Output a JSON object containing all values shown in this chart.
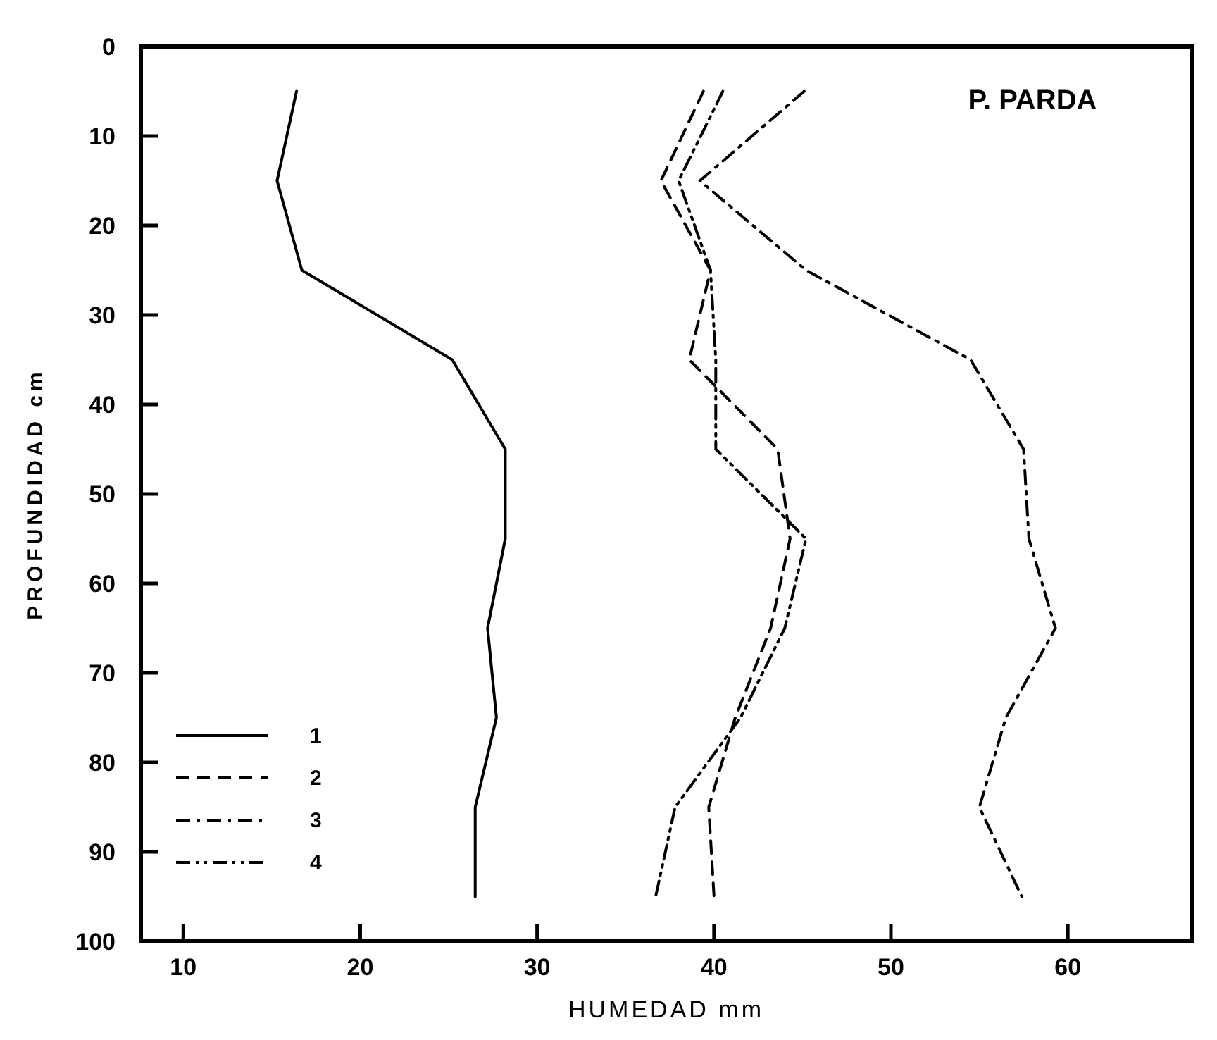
{
  "chart_data": {
    "type": "line",
    "title": "P. PARDA",
    "xlabel": "HUMEDAD mm",
    "ylabel": "PROFUNDIDAD cm",
    "xlim": [
      7.6,
      67
    ],
    "xticks": [
      10,
      20,
      30,
      40,
      50,
      60
    ],
    "ylim": [
      100,
      0
    ],
    "yticks": [
      0,
      10,
      20,
      30,
      40,
      50,
      60,
      70,
      80,
      90,
      100
    ],
    "grid": false,
    "legend": "bottom left",
    "marker": "none",
    "series": [
      {
        "name": "1",
        "color": "#000000",
        "line_style": "solid",
        "x": [
          16.4,
          15.3,
          16.7,
          25.2,
          28.2,
          28.2,
          27.2,
          27.7,
          26.5,
          26.5
        ],
        "values": [
          5,
          15,
          25,
          35,
          45,
          55,
          65,
          75,
          85,
          95
        ]
      },
      {
        "name": "2",
        "color": "#000000",
        "line_style": "dashed",
        "x": [
          39.4,
          37,
          39.8,
          38.6,
          43.6,
          44.3,
          43.2,
          41.2,
          39.7,
          40
        ],
        "values": [
          5,
          15,
          25,
          35,
          45,
          55,
          65,
          75,
          85,
          95
        ]
      },
      {
        "name": "3",
        "color": "#000000",
        "line_style": "dashdot",
        "x": [
          45.1,
          39.2,
          45.2,
          54.5,
          57.5,
          57.8,
          59.3,
          56.5,
          55,
          57.4
        ],
        "values": [
          5,
          15,
          25,
          35,
          45,
          55,
          65,
          75,
          85,
          95
        ]
      },
      {
        "name": "4",
        "color": "#000000",
        "line_style": "dashdotdot",
        "x": [
          40.5,
          38,
          39.8,
          40.1,
          40.1,
          45.2,
          44,
          41.5,
          37.8,
          36.7
        ],
        "values": [
          5,
          15,
          25,
          35,
          45,
          55,
          65,
          75,
          85,
          95
        ]
      }
    ]
  }
}
